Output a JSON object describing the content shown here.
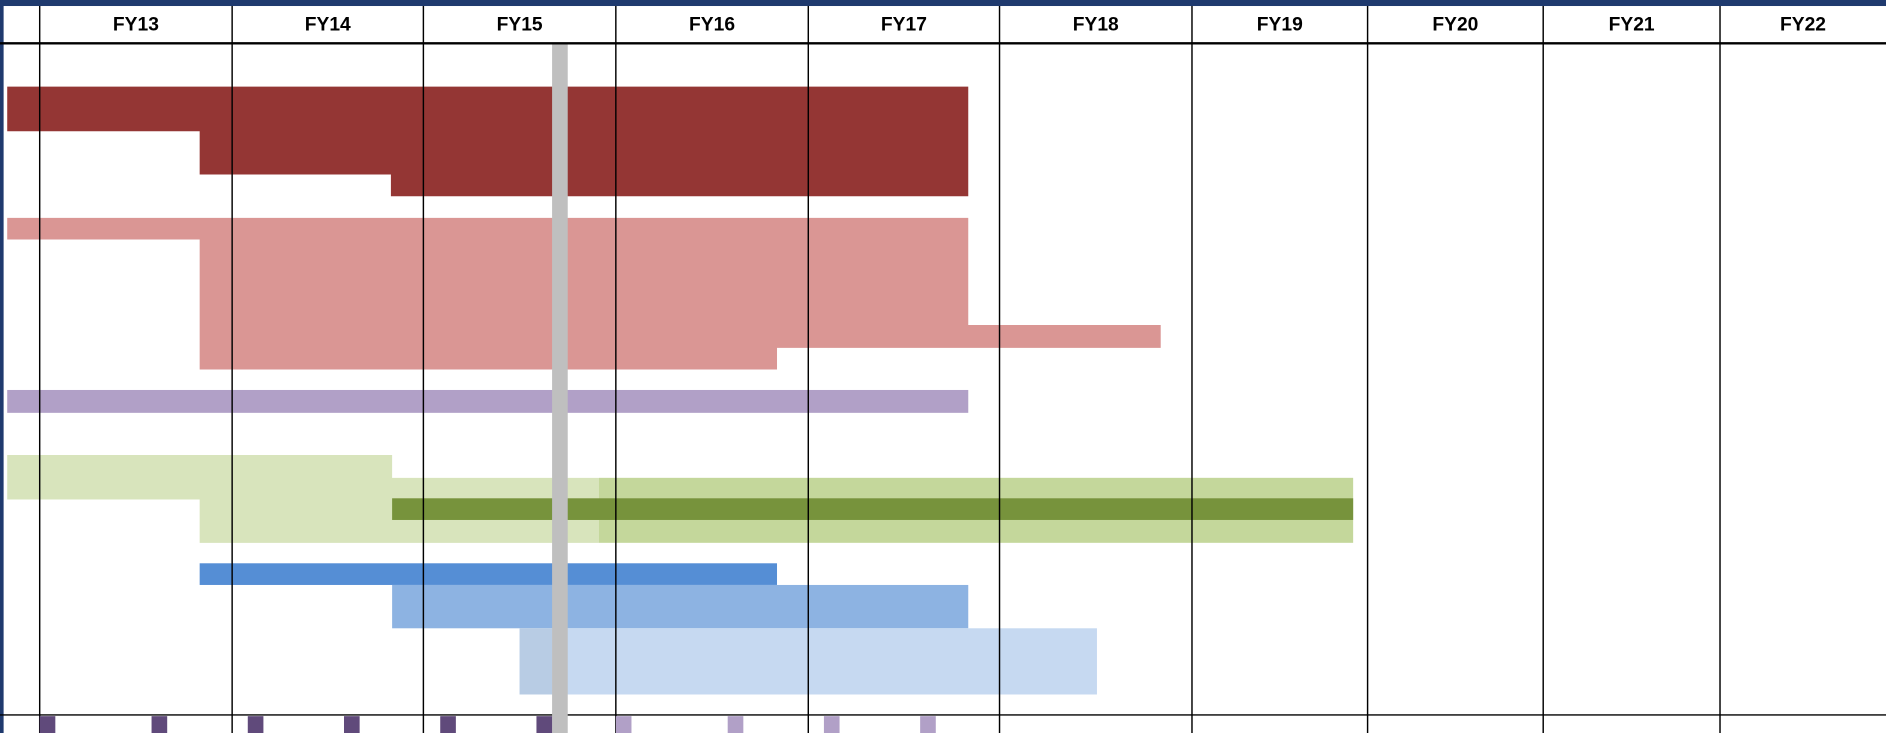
{
  "header": {
    "columns": [
      "FY13",
      "FY14",
      "FY15",
      "FY16",
      "FY17",
      "FY18",
      "FY19",
      "FY20",
      "FY21",
      "FY22"
    ]
  }
}
